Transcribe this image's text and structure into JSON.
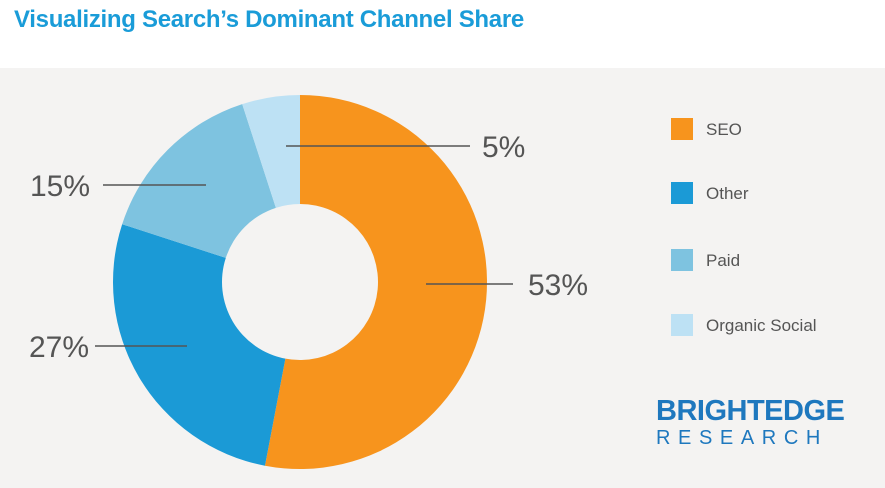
{
  "title": "Visualizing Search’s Dominant Channel Share",
  "chart_data": {
    "type": "pie",
    "categories": [
      "SEO",
      "Other",
      "Paid",
      "Organic Social"
    ],
    "values": [
      53,
      27,
      15,
      5
    ],
    "value_labels": [
      "53%",
      "27%",
      "15%",
      "5%"
    ],
    "colors": [
      "#f7941d",
      "#1b9ad6",
      "#7ec3e0",
      "#bde1f4"
    ],
    "donut": true,
    "legend_position": "right"
  },
  "legend": {
    "items": [
      {
        "label": "SEO",
        "color": "#f7941d"
      },
      {
        "label": "Other",
        "color": "#1b9ad6"
      },
      {
        "label": "Paid",
        "color": "#7ec3e0"
      },
      {
        "label": "Organic Social",
        "color": "#bde1f4"
      }
    ]
  },
  "logo": {
    "top": "BRIGHTEDGE",
    "bottom": "RESEARCH",
    "color": "#1e78be"
  },
  "colors": {
    "title": "#1a9cd8",
    "panel_background": "#f4f3f2",
    "label_text": "#555555"
  }
}
